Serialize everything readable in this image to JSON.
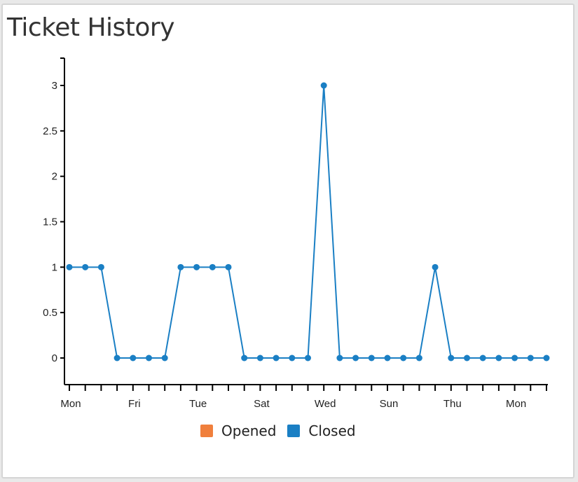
{
  "title": "Ticket History",
  "chart_data": {
    "type": "line",
    "title": "Ticket History",
    "xlabel": "",
    "ylabel": "",
    "ylim": [
      -0.25,
      3.3
    ],
    "yticks": [
      "0",
      "0.5",
      "1",
      "1.5",
      "2",
      "2.5",
      "3"
    ],
    "xtick_labels": [
      {
        "label": "Mon",
        "index": 0
      },
      {
        "label": "Fri",
        "index": 4
      },
      {
        "label": "Tue",
        "index": 8
      },
      {
        "label": "Sat",
        "index": 12
      },
      {
        "label": "Wed",
        "index": 16
      },
      {
        "label": "Sun",
        "index": 20
      },
      {
        "label": "Thu",
        "index": 24
      },
      {
        "label": "Mon",
        "index": 28
      }
    ],
    "grid": false,
    "legend_position": "bottom",
    "series": [
      {
        "name": "Opened",
        "color": "#f07f3c",
        "values": []
      },
      {
        "name": "Closed",
        "color": "#1a7fc4",
        "values": [
          1,
          1,
          1,
          0,
          0,
          0,
          0,
          1,
          1,
          1,
          1,
          0,
          0,
          0,
          0,
          0,
          3,
          0,
          0,
          0,
          0,
          0,
          0,
          1,
          0,
          0,
          0,
          0,
          0,
          0,
          0
        ]
      }
    ]
  }
}
